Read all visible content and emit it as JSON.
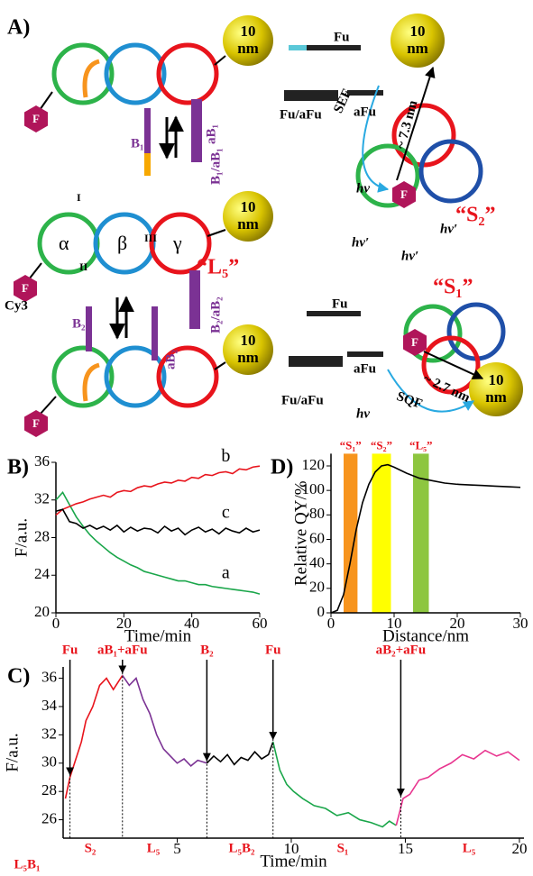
{
  "panel_a": {
    "panel_label": "A)",
    "sphere_top": "10",
    "sphere_bottom": "nm",
    "fluor": "F",
    "labels": [
      "Fu",
      "Fu/aFu",
      "aFu",
      "SEF",
      "~ 7.3 nm",
      "hν",
      "hν′",
      "hν′",
      "hν′",
      "“S₂”",
      "B₁",
      "aB₁",
      "B₁/aB₁",
      "I",
      "II",
      "III",
      "α",
      "β",
      "γ",
      "“L₅”",
      "Cy3",
      "B₂",
      "aB₂",
      "B₂/aB₂",
      "Fu",
      "aFu",
      "Fu/aFu",
      "hν",
      "SQF",
      "~ 2.7 nm",
      "“S₁”"
    ]
  },
  "chart_data": [
    {
      "type": "line",
      "panel_label": "B)",
      "x_label": "Time/min",
      "y_label": "F/a.u.",
      "xlim": [
        0,
        60
      ],
      "xticks": [
        0,
        20,
        40,
        60
      ],
      "ylim": [
        20,
        36
      ],
      "yticks": [
        20,
        24,
        28,
        32,
        36
      ],
      "x": [
        0,
        2,
        4,
        6,
        8,
        10,
        12,
        14,
        16,
        18,
        20,
        22,
        24,
        26,
        28,
        30,
        32,
        34,
        36,
        38,
        40,
        42,
        44,
        46,
        48,
        50,
        52,
        54,
        56,
        58,
        60
      ],
      "series": [
        {
          "name": "a",
          "color": "#1aa64a",
          "values": [
            32,
            32.8,
            31.5,
            30.2,
            29.2,
            28.3,
            27.6,
            27.0,
            26.4,
            25.9,
            25.5,
            25.1,
            24.8,
            24.4,
            24.2,
            24.0,
            23.8,
            23.6,
            23.4,
            23.4,
            23.2,
            23.0,
            23.0,
            22.8,
            22.7,
            22.6,
            22.5,
            22.4,
            22.3,
            22.2,
            22.0
          ]
        },
        {
          "name": "b",
          "color": "#e8141c",
          "values": [
            30.4,
            31.0,
            31.3,
            31.6,
            31.8,
            32.1,
            32.3,
            32.5,
            32.3,
            32.8,
            33.0,
            32.9,
            33.3,
            33.5,
            33.4,
            33.7,
            33.9,
            33.8,
            34.1,
            34.0,
            34.4,
            34.3,
            34.7,
            34.6,
            34.9,
            35.0,
            34.8,
            35.3,
            35.2,
            35.5,
            35.6
          ]
        },
        {
          "name": "c",
          "color": "#000000",
          "values": [
            30.8,
            31.0,
            29.7,
            29.5,
            29.0,
            29.3,
            28.9,
            29.2,
            28.8,
            29.3,
            28.6,
            29.1,
            28.7,
            29.0,
            28.9,
            28.5,
            29.2,
            28.7,
            29.0,
            28.3,
            28.8,
            29.1,
            28.6,
            28.9,
            28.4,
            29.0,
            28.7,
            28.5,
            29.0,
            28.6,
            28.8
          ]
        }
      ]
    },
    {
      "type": "line",
      "panel_label": "D)",
      "x_label": "Distance/nm",
      "y_label": "Relative QY/%",
      "xlim": [
        0,
        30
      ],
      "xticks": [
        0,
        10,
        20,
        30
      ],
      "ylim": [
        0,
        130
      ],
      "yticks": [
        0,
        20,
        40,
        60,
        80,
        100,
        120
      ],
      "regions": [
        {
          "name": "“S₁”",
          "color": "#f7941d",
          "x": [
            2,
            4.2
          ]
        },
        {
          "name": "“S₂”",
          "color": "#ffff00",
          "x": [
            6.5,
            9.5
          ]
        },
        {
          "name": "“L₅”",
          "color": "#8dc63f",
          "x": [
            13,
            15.5
          ]
        }
      ],
      "x": [
        0,
        1,
        2,
        3,
        4,
        5,
        6,
        7,
        8,
        9,
        10,
        12,
        14,
        16,
        18,
        20,
        22,
        24,
        26,
        28,
        30
      ],
      "series": [
        {
          "color": "#000000",
          "values": [
            0,
            2,
            15,
            40,
            68,
            90,
            105,
            115,
            120,
            121,
            119,
            114,
            110,
            108,
            106,
            105,
            104.5,
            104,
            103.5,
            103,
            102.5
          ]
        }
      ]
    },
    {
      "type": "line",
      "panel_label": "C)",
      "x_label": "Time/min",
      "y_label": "F/a.u.",
      "xlim": [
        0,
        20.2
      ],
      "xticks": [
        5,
        10,
        15,
        20
      ],
      "ylim": [
        24.7,
        36.8
      ],
      "yticks": [
        26,
        28,
        30,
        32,
        34,
        36
      ],
      "series": [
        {
          "color": "#e8141c",
          "x": [
            0.1,
            0.3,
            0.5,
            0.8,
            1.0,
            1.3,
            1.6,
            1.9,
            2.2,
            2.6
          ],
          "values": [
            27.5,
            29,
            30,
            31.5,
            33,
            34,
            35.5,
            36,
            35.2,
            36.2
          ]
        },
        {
          "color": "#7b3294",
          "x": [
            2.6,
            2.9,
            3.2,
            3.5,
            3.8,
            4.1,
            4.4,
            4.7,
            5.0,
            5.3,
            5.6,
            5.9,
            6.3
          ],
          "values": [
            36.2,
            35.5,
            36,
            34.5,
            33.5,
            32,
            31,
            30.5,
            30.0,
            30.3,
            29.8,
            30.2,
            30.0
          ]
        },
        {
          "color": "#000000",
          "x": [
            6.3,
            6.6,
            6.9,
            7.2,
            7.5,
            7.8,
            8.1,
            8.4,
            8.7,
            9.0,
            9.2
          ],
          "values": [
            30.0,
            30.5,
            30.1,
            30.6,
            29.9,
            30.4,
            30.2,
            30.8,
            30.3,
            30.6,
            31.5
          ]
        },
        {
          "color": "#1aa64a",
          "x": [
            9.2,
            9.5,
            9.8,
            10.1,
            10.5,
            11,
            11.5,
            12,
            12.5,
            13,
            13.5,
            14,
            14.3,
            14.6
          ],
          "values": [
            31.5,
            29.5,
            28.5,
            28.0,
            27.5,
            27.0,
            26.8,
            26.3,
            26.5,
            26.0,
            25.8,
            25.5,
            25.9,
            25.6
          ]
        },
        {
          "color": "#e8358f",
          "x": [
            14.6,
            14.9,
            15.2,
            15.6,
            16.0,
            16.5,
            17,
            17.5,
            18,
            18.5,
            19,
            19.5,
            20
          ],
          "values": [
            25.6,
            27.5,
            27.8,
            28.8,
            29.0,
            29.6,
            30.0,
            30.6,
            30.3,
            30.9,
            30.5,
            30.8,
            30.2
          ]
        }
      ],
      "events": [
        {
          "x": 0.3,
          "label": "Fu"
        },
        {
          "x": 2.6,
          "label": "aB₁+aFu"
        },
        {
          "x": 6.3,
          "label": "B₂"
        },
        {
          "x": 9.2,
          "label": "Fu"
        },
        {
          "x": 14.8,
          "label": "aB₂+aFu"
        }
      ],
      "stages": [
        "L₅B₁",
        "S₂",
        "L₅",
        "L₅B₂",
        "S₁",
        "L₅"
      ]
    }
  ]
}
